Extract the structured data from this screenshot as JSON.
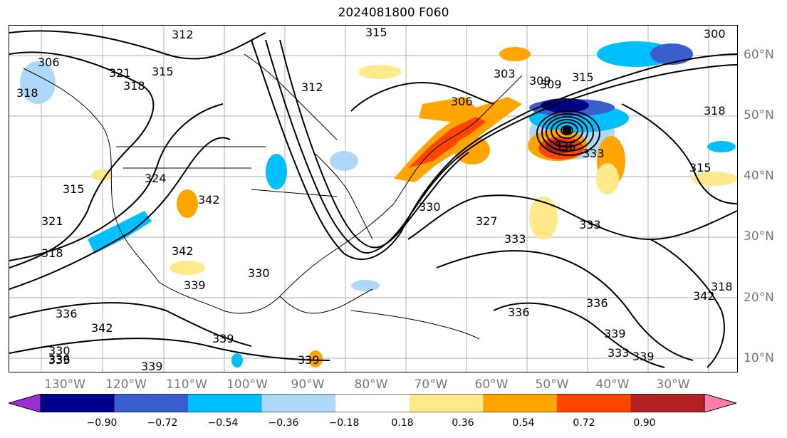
{
  "title": "2024081800 F060",
  "map": {
    "projection": "PlateCarree",
    "lon_labels": [
      "130°W",
      "120°W",
      "110°W",
      "100°W",
      "90°W",
      "80°W",
      "70°W",
      "60°W",
      "50°W",
      "40°W",
      "30°W"
    ],
    "lat_labels": [
      "60°N",
      "50°N",
      "40°N",
      "30°N",
      "20°N",
      "10°N"
    ],
    "contour_labels": [
      "312",
      "315",
      "318",
      "306",
      "309",
      "300",
      "303",
      "306",
      "309",
      "312",
      "315",
      "318",
      "315",
      "318",
      "321",
      "324",
      "342",
      "315",
      "321",
      "318",
      "342",
      "339",
      "330",
      "336",
      "342",
      "339",
      "339",
      "330",
      "333",
      "336",
      "339",
      "327",
      "330",
      "333",
      "336",
      "333",
      "336",
      "333",
      "339",
      "339",
      "333",
      "336",
      "342",
      "315",
      "318"
    ],
    "contour_color": "#000000",
    "grid_color": "#b0b0b0"
  },
  "colorbar": {
    "ticks": [
      "−0.90",
      "−0.72",
      "−0.54",
      "−0.36",
      "−0.18",
      "0.18",
      "0.36",
      "0.54",
      "0.72",
      "0.90"
    ],
    "colors": [
      "#9b30d0",
      "#00008b",
      "#3a5fcd",
      "#00bfff",
      "#add8f7",
      "#ffffff",
      "#ffe98a",
      "#ffa500",
      "#ff4500",
      "#b22222",
      "#ff7fa8"
    ]
  }
}
